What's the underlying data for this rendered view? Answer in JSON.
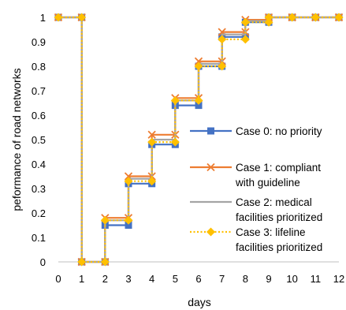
{
  "chart_data": {
    "type": "line",
    "step": true,
    "xlabel": "days",
    "ylabel": "peformance of road networks",
    "xlim": [
      0,
      12
    ],
    "ylim": [
      0,
      1
    ],
    "x_ticks": [
      "0",
      "1",
      "2",
      "3",
      "4",
      "5",
      "6",
      "7",
      "8",
      "9",
      "10",
      "11",
      "12"
    ],
    "y_ticks": [
      "0",
      "0.1",
      "0.2",
      "0.3",
      "0.4",
      "0.5",
      "0.6",
      "0.7",
      "0.8",
      "0.9",
      "1"
    ],
    "grid": false,
    "legend_position": "right",
    "x": [
      0,
      1,
      2,
      3,
      4,
      5,
      6,
      7,
      8,
      9,
      10,
      11,
      12
    ],
    "series": [
      {
        "name": "Case 0: no priority",
        "color": "#4472C4",
        "marker": "square",
        "dash": "solid",
        "values": [
          1,
          0,
          0.15,
          0.32,
          0.48,
          0.64,
          0.8,
          0.92,
          0.98,
          1,
          1,
          1,
          1
        ]
      },
      {
        "name": "Case 1: compliant with guideline",
        "color": "#ED7D31",
        "marker": "x",
        "dash": "solid",
        "values": [
          1,
          0,
          0.18,
          0.35,
          0.52,
          0.67,
          0.82,
          0.94,
          0.99,
          1,
          1,
          1,
          1
        ]
      },
      {
        "name": "Case 2: medical facilities prioritized",
        "color": "#A5A5A5",
        "marker": "none",
        "dash": "solid",
        "values": [
          1,
          0,
          0.17,
          0.34,
          0.5,
          0.66,
          0.81,
          0.93,
          0.985,
          1,
          1,
          1,
          1
        ]
      },
      {
        "name": "Case 3: lifeline facilities prioritized",
        "color": "#FFC000",
        "marker": "diamond",
        "dash": "dotted",
        "values": [
          1,
          0,
          0.17,
          0.33,
          0.49,
          0.66,
          0.8,
          0.91,
          0.98,
          1,
          1,
          1,
          1
        ]
      }
    ],
    "legend_lines": [
      [
        "Case 0: no priority"
      ],
      [
        "Case 1: compliant",
        "with guideline"
      ],
      [
        "Case 2: medical",
        "facilities prioritized"
      ],
      [
        "Case 3: lifeline",
        "facilities prioritized"
      ]
    ]
  }
}
